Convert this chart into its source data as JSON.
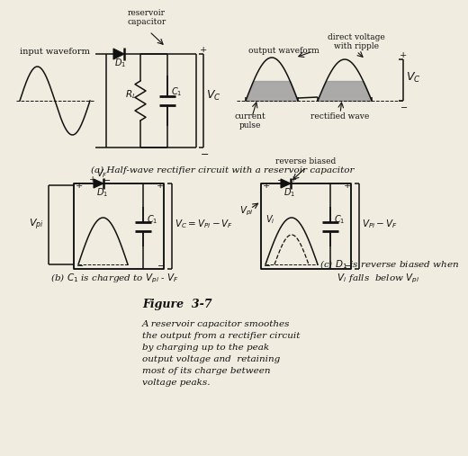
{
  "bg_color": "#f0ece0",
  "title": "Figure  3-7",
  "caption_lines": [
    "A reservoir capacitor smoothes",
    "the output from a rectifier circuit",
    "by charging up to the peak",
    "output voltage and  retaining",
    "most of its charge between",
    "voltage peaks."
  ],
  "label_a": "(a) Half-wave rectifier circuit with a reservoir capacitor",
  "label_b": "(b) $C_1$ is charged to $V_{pi}$ - $V_F$",
  "label_c": "(c) $D_1$ is reverse biased when\n     $V_i$ falls  below $V_{pi}$",
  "gray_fill": "#9a9a9a"
}
